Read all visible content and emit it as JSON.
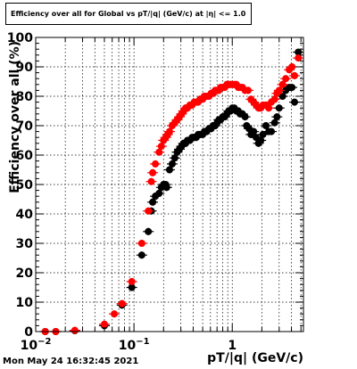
{
  "header": {
    "title": "Efficiency over all for Global vs pT/|q| (GeV/c) at |η| <= 1.0"
  },
  "footer": {
    "timestamp": "Mon May 24 16:32:45 2021"
  },
  "chart_data": {
    "type": "scatter",
    "title": "Efficiency over all for Global vs pT/|q| (GeV/c) at |η| <= 1.0",
    "xlabel": "pT/|q| (GeV/c)",
    "ylabel": "Efficiency over all (%)",
    "xscale": "log",
    "xlim": [
      0.01,
      5.3
    ],
    "ylim": [
      0,
      100
    ],
    "grid": true,
    "x_ticks": [
      {
        "value": 0.01,
        "base": "10",
        "exp": "−2"
      },
      {
        "value": 0.1,
        "base": "10",
        "exp": "−1"
      },
      {
        "value": 1,
        "base": "1",
        "exp": ""
      }
    ],
    "y_ticks": [
      {
        "value": 0,
        "label": "0"
      },
      {
        "value": 10,
        "label": "10"
      },
      {
        "value": 20,
        "label": "20"
      },
      {
        "value": 30,
        "label": "30"
      },
      {
        "value": 40,
        "label": "40"
      },
      {
        "value": 50,
        "label": "50"
      },
      {
        "value": 60,
        "label": "60"
      },
      {
        "value": 70,
        "label": "70"
      },
      {
        "value": 80,
        "label": "80"
      },
      {
        "value": 90,
        "label": "90"
      },
      {
        "value": 100,
        "label": "100"
      }
    ],
    "series": [
      {
        "color": "#000000",
        "points": [
          [
            0.0125,
            0
          ],
          [
            0.016,
            0
          ],
          [
            0.025,
            0.3
          ],
          [
            0.05,
            2
          ],
          [
            0.0755,
            9
          ],
          [
            0.095,
            15
          ],
          [
            0.12,
            26
          ],
          [
            0.14,
            34
          ],
          [
            0.15,
            41
          ],
          [
            0.155,
            44
          ],
          [
            0.165,
            46
          ],
          [
            0.18,
            47
          ],
          [
            0.19,
            49
          ],
          [
            0.2,
            50
          ],
          [
            0.21,
            50
          ],
          [
            0.215,
            49
          ],
          [
            0.23,
            55
          ],
          [
            0.245,
            57
          ],
          [
            0.26,
            59
          ],
          [
            0.275,
            61
          ],
          [
            0.29,
            62
          ],
          [
            0.305,
            63
          ],
          [
            0.32,
            64
          ],
          [
            0.335,
            64
          ],
          [
            0.35,
            65
          ],
          [
            0.37,
            65
          ],
          [
            0.39,
            66
          ],
          [
            0.41,
            66
          ],
          [
            0.43,
            66
          ],
          [
            0.45,
            67
          ],
          [
            0.47,
            67
          ],
          [
            0.5,
            67
          ],
          [
            0.52,
            68
          ],
          [
            0.55,
            68
          ],
          [
            0.58,
            69
          ],
          [
            0.61,
            69
          ],
          [
            0.64,
            70
          ],
          [
            0.67,
            70
          ],
          [
            0.7,
            71
          ],
          [
            0.73,
            72
          ],
          [
            0.76,
            72
          ],
          [
            0.8,
            73
          ],
          [
            0.84,
            73
          ],
          [
            0.88,
            74
          ],
          [
            0.92,
            75
          ],
          [
            0.96,
            75
          ],
          [
            1.0,
            76
          ],
          [
            1.05,
            76
          ],
          [
            1.1,
            75
          ],
          [
            1.15,
            75
          ],
          [
            1.2,
            74
          ],
          [
            1.27,
            74
          ],
          [
            1.35,
            73
          ],
          [
            1.4,
            70
          ],
          [
            1.48,
            69
          ],
          [
            1.55,
            67
          ],
          [
            1.65,
            68
          ],
          [
            1.75,
            66
          ],
          [
            1.85,
            64
          ],
          [
            1.95,
            65
          ],
          [
            2.05,
            67
          ],
          [
            2.2,
            70
          ],
          [
            2.35,
            68
          ],
          [
            2.5,
            68
          ],
          [
            2.7,
            71
          ],
          [
            2.85,
            73
          ],
          [
            3.0,
            76
          ],
          [
            3.25,
            80
          ],
          [
            3.5,
            82
          ],
          [
            3.8,
            83
          ],
          [
            4.05,
            83
          ],
          [
            4.3,
            78
          ],
          [
            4.7,
            95
          ]
        ]
      },
      {
        "color": "#ff0000",
        "points": [
          [
            0.0125,
            0
          ],
          [
            0.016,
            0
          ],
          [
            0.025,
            0.4
          ],
          [
            0.05,
            2.5
          ],
          [
            0.063,
            6
          ],
          [
            0.0755,
            9.5
          ],
          [
            0.095,
            17
          ],
          [
            0.12,
            30
          ],
          [
            0.14,
            41
          ],
          [
            0.15,
            51
          ],
          [
            0.155,
            54
          ],
          [
            0.165,
            57
          ],
          [
            0.18,
            61
          ],
          [
            0.19,
            63
          ],
          [
            0.2,
            65
          ],
          [
            0.21,
            66
          ],
          [
            0.22,
            67
          ],
          [
            0.23,
            68
          ],
          [
            0.245,
            70
          ],
          [
            0.26,
            71
          ],
          [
            0.275,
            72
          ],
          [
            0.29,
            73
          ],
          [
            0.305,
            74
          ],
          [
            0.32,
            75
          ],
          [
            0.335,
            76
          ],
          [
            0.35,
            76
          ],
          [
            0.37,
            77
          ],
          [
            0.39,
            77
          ],
          [
            0.41,
            78
          ],
          [
            0.43,
            78
          ],
          [
            0.45,
            78
          ],
          [
            0.47,
            79
          ],
          [
            0.5,
            79
          ],
          [
            0.52,
            80
          ],
          [
            0.55,
            80
          ],
          [
            0.58,
            80
          ],
          [
            0.61,
            81
          ],
          [
            0.64,
            81
          ],
          [
            0.67,
            82
          ],
          [
            0.7,
            82
          ],
          [
            0.73,
            82
          ],
          [
            0.76,
            83
          ],
          [
            0.8,
            83
          ],
          [
            0.84,
            83
          ],
          [
            0.88,
            84
          ],
          [
            0.92,
            84
          ],
          [
            0.96,
            84
          ],
          [
            1.0,
            84
          ],
          [
            1.05,
            84
          ],
          [
            1.1,
            84
          ],
          [
            1.15,
            83
          ],
          [
            1.2,
            83
          ],
          [
            1.27,
            83
          ],
          [
            1.35,
            82
          ],
          [
            1.45,
            82
          ],
          [
            1.55,
            79
          ],
          [
            1.65,
            78
          ],
          [
            1.75,
            77
          ],
          [
            1.85,
            76
          ],
          [
            1.95,
            76
          ],
          [
            2.05,
            77
          ],
          [
            2.2,
            77
          ],
          [
            2.35,
            76
          ],
          [
            2.5,
            78
          ],
          [
            2.7,
            79
          ],
          [
            2.85,
            81
          ],
          [
            3.0,
            82
          ],
          [
            3.25,
            84
          ],
          [
            3.5,
            86
          ],
          [
            3.8,
            89
          ],
          [
            4.05,
            90
          ],
          [
            4.3,
            87
          ],
          [
            4.7,
            93
          ]
        ]
      }
    ]
  }
}
